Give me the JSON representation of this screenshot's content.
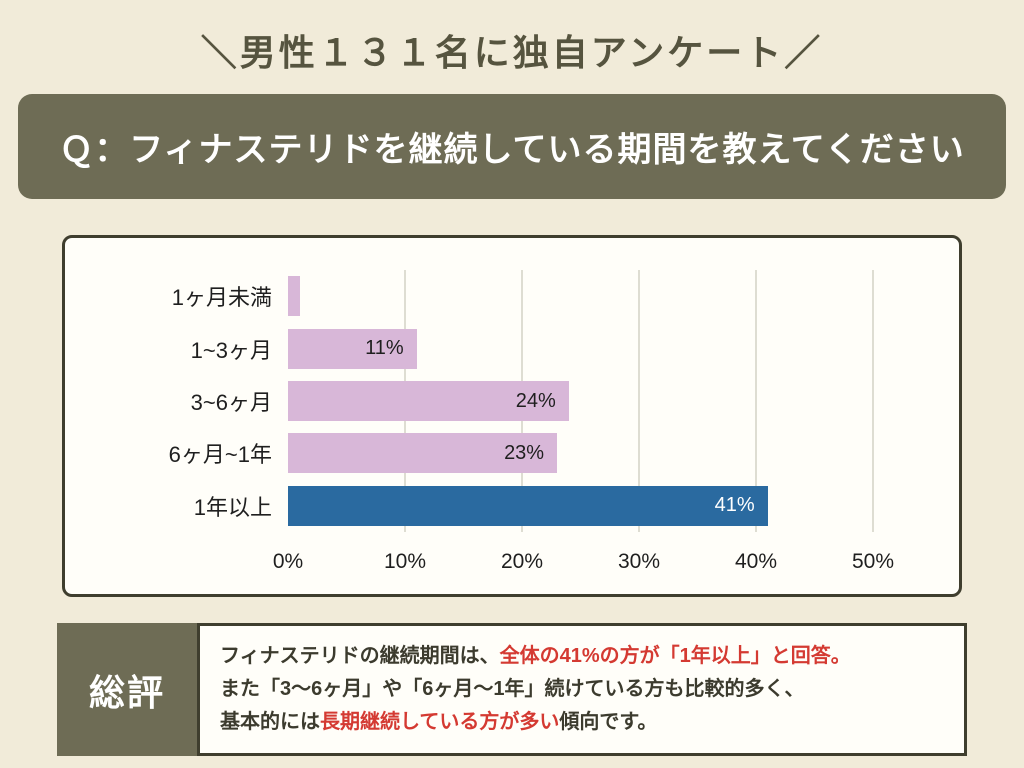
{
  "colors": {
    "background": "#f1ebd9",
    "accent_olive": "#6e6c55",
    "header_text": "#56543f",
    "card_border": "#3f3e2e",
    "bar_purple": "#d8b7d8",
    "bar_blue": "#2a6aa0",
    "grid": "#deddd2",
    "dark": "#3c3b2e",
    "red": "#d43a32"
  },
  "header": {
    "title": "＼男性１３１名に独自アンケート／"
  },
  "question": {
    "label": "Ｑ：フィナステリドを継続している期間を教えてください"
  },
  "chart_data": {
    "type": "bar",
    "orientation": "horizontal",
    "title": "",
    "xlabel": "",
    "ylabel": "",
    "categories": [
      "1ヶ月未満",
      "1~3ヶ月",
      "3~6ヶ月",
      "6ヶ月~1年",
      "1年以上"
    ],
    "values": [
      1,
      11,
      24,
      23,
      41
    ],
    "value_labels": [
      "",
      "11%",
      "24%",
      "23%",
      "41%"
    ],
    "xlim": [
      0,
      50
    ],
    "x_ticks": [
      "0%",
      "10%",
      "20%",
      "30%",
      "40%",
      "50%"
    ],
    "grid": true,
    "legend": false,
    "bar_colors": [
      "#d8b7d8",
      "#d8b7d8",
      "#d8b7d8",
      "#d8b7d8",
      "#2a6aa0"
    ],
    "value_label_colors": [
      "#1f1f1f",
      "#1f1f1f",
      "#1f1f1f",
      "#1f1f1f",
      "#ffffff"
    ]
  },
  "summary": {
    "heading": "総評",
    "lines": [
      [
        {
          "text": "フィナステリドの継続期間は、",
          "color": "dark"
        },
        {
          "text": "全体の41%の方が「1年以上」と回答。",
          "color": "red"
        }
      ],
      [
        {
          "text": "また「3〜6ヶ月」や「6ヶ月〜1年」続けている方も比較的多く、",
          "color": "dark"
        }
      ],
      [
        {
          "text": "基本的には",
          "color": "dark"
        },
        {
          "text": "長期継続している方が多い",
          "color": "red"
        },
        {
          "text": "傾向です。",
          "color": "dark"
        }
      ]
    ]
  }
}
